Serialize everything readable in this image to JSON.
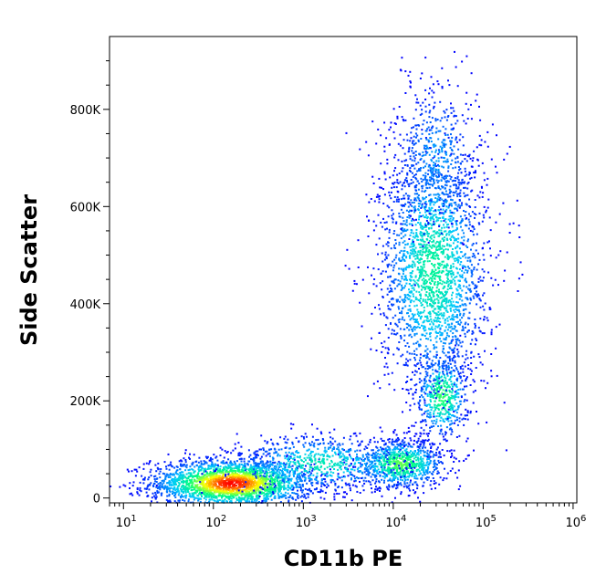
{
  "chart_data": {
    "type": "scatter",
    "subtype": "flow-cytometry-density-dot-plot",
    "xlabel": "CD11b PE",
    "ylabel": "Side Scatter",
    "x_scale": "log",
    "xlim": [
      7,
      1100000
    ],
    "ylim": [
      -10000,
      950000
    ],
    "x_ticks": [
      {
        "value": 10,
        "base": "10",
        "exp": "1"
      },
      {
        "value": 100,
        "base": "10",
        "exp": "2"
      },
      {
        "value": 1000,
        "base": "10",
        "exp": "3"
      },
      {
        "value": 10000,
        "base": "10",
        "exp": "4"
      },
      {
        "value": 100000,
        "base": "10",
        "exp": "5"
      },
      {
        "value": 1000000,
        "base": "10",
        "exp": "6"
      }
    ],
    "y_ticks": [
      {
        "value": 0,
        "label": "0"
      },
      {
        "value": 200000,
        "label": "200K"
      },
      {
        "value": 400000,
        "label": "400K"
      },
      {
        "value": 600000,
        "label": "600K"
      },
      {
        "value": 800000,
        "label": "800K"
      }
    ],
    "color_scale": [
      "#0000ff",
      "#00c8ff",
      "#00ff80",
      "#ffff00",
      "#ff0000"
    ],
    "grid": false,
    "legend": "none",
    "populations": [
      {
        "x_center": 160,
        "y_center": 30000,
        "x_spread_decades": 0.45,
        "y_spread": 25000,
        "count": 2600,
        "peak_density": 1.0
      },
      {
        "x_center": 12000,
        "y_center": 70000,
        "x_spread_decades": 0.25,
        "y_spread": 25000,
        "count": 900,
        "peak_density": 0.6
      },
      {
        "x_center": 1500,
        "y_center": 70000,
        "x_spread_decades": 0.5,
        "y_spread": 30000,
        "count": 700,
        "peak_density": 0.4
      },
      {
        "x_center": 35000,
        "y_center": 210000,
        "x_spread_decades": 0.15,
        "y_spread": 45000,
        "count": 500,
        "peak_density": 0.55
      },
      {
        "x_center": 28000,
        "y_center": 470000,
        "x_spread_decades": 0.3,
        "y_spread": 130000,
        "count": 2300,
        "peak_density": 0.45
      },
      {
        "x_center": 30000,
        "y_center": 700000,
        "x_spread_decades": 0.25,
        "y_spread": 80000,
        "count": 500,
        "peak_density": 0.2
      }
    ]
  }
}
